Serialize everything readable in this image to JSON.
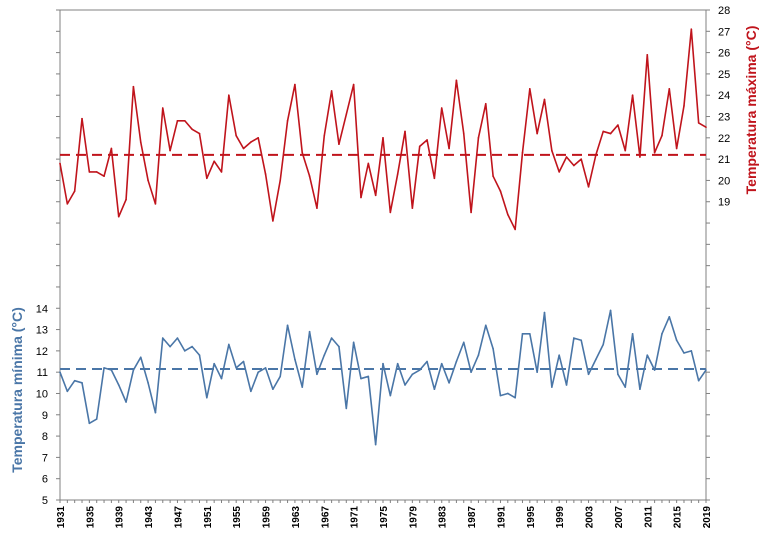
{
  "chart_data": {
    "type": "line",
    "x": [
      1931,
      1932,
      1933,
      1934,
      1935,
      1936,
      1937,
      1938,
      1939,
      1940,
      1941,
      1942,
      1943,
      1944,
      1945,
      1946,
      1947,
      1948,
      1949,
      1950,
      1951,
      1952,
      1953,
      1954,
      1955,
      1956,
      1957,
      1958,
      1959,
      1960,
      1961,
      1962,
      1963,
      1964,
      1965,
      1966,
      1967,
      1968,
      1969,
      1970,
      1971,
      1972,
      1973,
      1974,
      1975,
      1976,
      1977,
      1978,
      1979,
      1980,
      1981,
      1982,
      1983,
      1984,
      1985,
      1986,
      1987,
      1988,
      1989,
      1990,
      1991,
      1992,
      1993,
      1994,
      1995,
      1996,
      1997,
      1998,
      1999,
      2000,
      2001,
      2002,
      2003,
      2004,
      2005,
      2006,
      2007,
      2008,
      2009,
      2010,
      2011,
      2012,
      2013,
      2014,
      2015,
      2016,
      2017,
      2018,
      2019
    ],
    "x_ticks": [
      "1931",
      "1935",
      "1939",
      "1943",
      "1947",
      "1951",
      "1955",
      "1959",
      "1963",
      "1967",
      "1971",
      "1975",
      "1979",
      "1983",
      "1987",
      "1991",
      "1995",
      "1999",
      "2003",
      "2007",
      "2011",
      "2015",
      "2019"
    ],
    "series": [
      {
        "name": "Temperatura máxima (°C)",
        "axis": "right",
        "color": "#C0141C",
        "mean": 21.2,
        "values": [
          20.8,
          18.9,
          19.5,
          22.9,
          20.4,
          20.4,
          20.2,
          21.5,
          18.3,
          19.1,
          24.4,
          21.8,
          20.0,
          18.9,
          23.4,
          21.4,
          22.8,
          22.8,
          22.4,
          22.2,
          20.1,
          20.9,
          20.4,
          24.0,
          22.1,
          21.5,
          21.8,
          22.0,
          20.3,
          18.1,
          20.0,
          22.8,
          24.5,
          21.3,
          20.2,
          18.7,
          22.1,
          24.2,
          21.7,
          23.1,
          24.5,
          19.2,
          20.8,
          19.3,
          22.0,
          18.5,
          20.3,
          22.3,
          18.7,
          21.6,
          21.9,
          20.1,
          23.4,
          21.5,
          24.7,
          22.2,
          18.5,
          22.0,
          23.6,
          20.2,
          19.5,
          18.4,
          17.7,
          21.3,
          24.3,
          22.2,
          23.8,
          21.4,
          20.4,
          21.1,
          20.7,
          21.0,
          19.7,
          21.2,
          22.3,
          22.2,
          22.6,
          21.4,
          24.0,
          21.1,
          25.9,
          21.3,
          22.1,
          24.3,
          21.5,
          23.5,
          27.1,
          22.7,
          22.5
        ]
      },
      {
        "name": "Temperatura mínima (°C)",
        "axis": "left",
        "color": "#4A76A7",
        "mean": 11.15,
        "values": [
          11.0,
          10.1,
          10.6,
          10.5,
          8.6,
          8.8,
          11.2,
          11.1,
          10.4,
          9.6,
          11.1,
          11.7,
          10.5,
          9.1,
          12.6,
          12.2,
          12.6,
          12.0,
          12.2,
          11.8,
          9.8,
          11.4,
          10.7,
          12.3,
          11.2,
          11.5,
          10.1,
          11.0,
          11.2,
          10.2,
          10.8,
          13.2,
          11.6,
          10.3,
          12.9,
          10.9,
          11.8,
          12.6,
          12.2,
          9.3,
          12.4,
          10.7,
          10.8,
          7.6,
          11.4,
          9.9,
          11.4,
          10.4,
          10.9,
          11.1,
          11.5,
          10.2,
          11.4,
          10.5,
          11.5,
          12.4,
          11.0,
          11.8,
          13.2,
          12.1,
          9.9,
          10.0,
          9.8,
          12.8,
          12.8,
          11.0,
          13.8,
          10.3,
          11.8,
          10.4,
          12.6,
          12.5,
          10.9,
          11.6,
          12.3,
          13.9,
          10.9,
          10.3,
          12.8,
          10.2,
          11.8,
          11.1,
          12.8,
          13.6,
          12.5,
          11.9,
          12.0,
          10.6,
          11.1
        ]
      }
    ],
    "y_left": {
      "label": "Temperatura mínima (°C)",
      "ticks": [
        5,
        6,
        7,
        8,
        9,
        10,
        11,
        12,
        13,
        14
      ],
      "range": [
        5,
        28
      ]
    },
    "y_right": {
      "label": "Temperatura máxima (°C)",
      "ticks": [
        19,
        20,
        21,
        22,
        23,
        24,
        25,
        26,
        27,
        28
      ],
      "range": [
        5,
        28
      ]
    },
    "grid": false,
    "legend": "none"
  }
}
